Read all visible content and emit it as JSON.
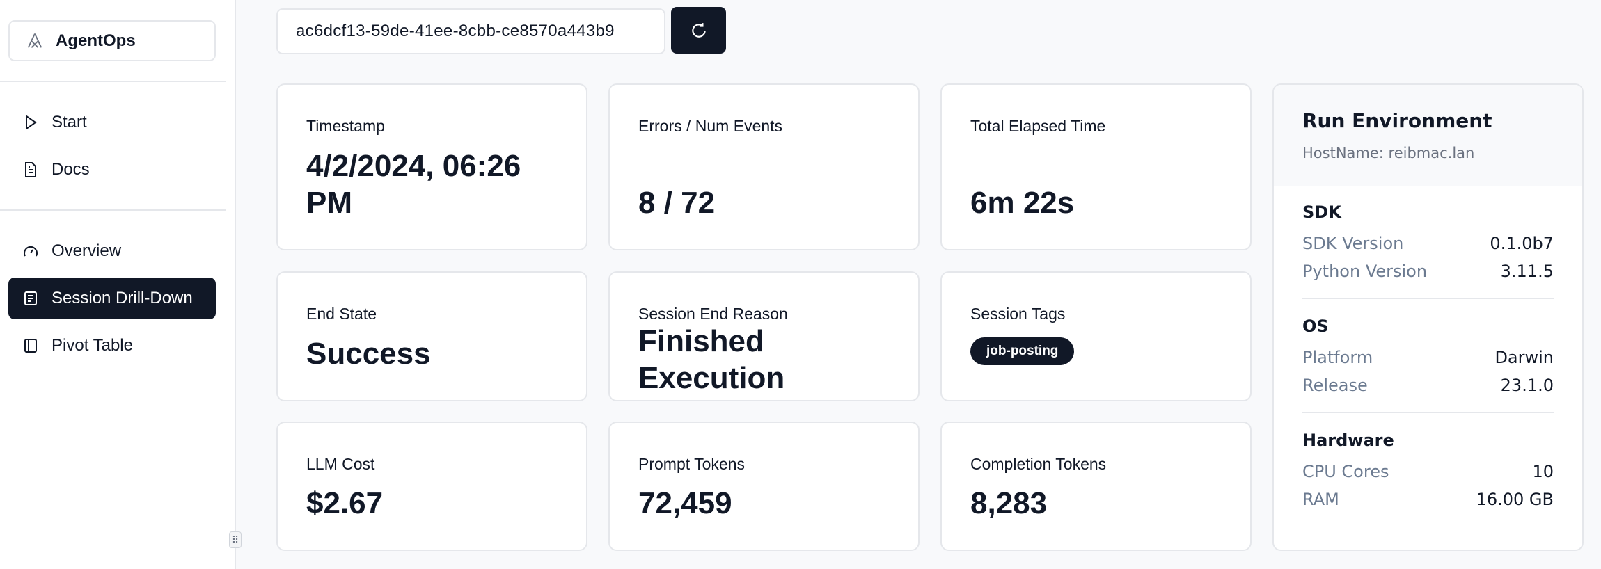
{
  "app": {
    "name": "AgentOps"
  },
  "sidebar": {
    "items": [
      {
        "label": "Start",
        "icon": "play-icon"
      },
      {
        "label": "Docs",
        "icon": "document-icon"
      },
      {
        "label": "Overview",
        "icon": "gauge-icon"
      },
      {
        "label": "Session Drill-Down",
        "icon": "list-icon",
        "active": true
      },
      {
        "label": "Pivot Table",
        "icon": "panel-icon"
      }
    ]
  },
  "session": {
    "id": "ac6dcf13-59de-41ee-8cbb-ce8570a443b9",
    "refresh_icon": "refresh-icon"
  },
  "cards": {
    "timestamp": {
      "label": "Timestamp",
      "value": "4/2/2024, 06:26 PM"
    },
    "errors": {
      "label": "Errors / Num Events",
      "value": "8 / 72"
    },
    "elapsed": {
      "label": "Total Elapsed Time",
      "value": "6m 22s"
    },
    "end_state": {
      "label": "End State",
      "value": "Success"
    },
    "end_reason": {
      "label": "Session End Reason",
      "value": "Finished Execution"
    },
    "tags": {
      "label": "Session Tags",
      "values": [
        "job-posting"
      ]
    },
    "cost": {
      "label": "LLM Cost",
      "value": "$2.67"
    },
    "prompt": {
      "label": "Prompt Tokens",
      "value": "72,459"
    },
    "completion": {
      "label": "Completion Tokens",
      "value": "8,283"
    }
  },
  "environment": {
    "title": "Run Environment",
    "hostname": "HostName: reibmac.lan",
    "sdk": {
      "title": "SDK",
      "rows": [
        {
          "k": "SDK Version",
          "v": "0.1.0b7"
        },
        {
          "k": "Python Version",
          "v": "3.11.5"
        }
      ]
    },
    "os": {
      "title": "OS",
      "rows": [
        {
          "k": "Platform",
          "v": "Darwin"
        },
        {
          "k": "Release",
          "v": "23.1.0"
        }
      ]
    },
    "hardware": {
      "title": "Hardware",
      "rows": [
        {
          "k": "CPU Cores",
          "v": "10"
        },
        {
          "k": "RAM",
          "v": "16.00 GB"
        }
      ]
    }
  },
  "colors": {
    "primary": "#111827",
    "background": "#f8f9fb",
    "border": "#e5e7eb",
    "muted": "#6b7a90"
  }
}
